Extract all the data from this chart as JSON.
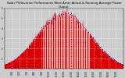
{
  "title": "Solar PV/Inverter Performance West Array Actual & Running Average Power Output",
  "title_fontsize": 2.8,
  "bg_color": "#cccccc",
  "plot_bg_color": "#cccccc",
  "bar_color": "#dd0000",
  "avg_color": "#0000dd",
  "grid_color": "#ffffff",
  "xlabel_fontsize": 2.0,
  "ylabel_fontsize": 2.0,
  "y_min": 0,
  "y_max": 6,
  "x_min": 240,
  "x_max": 1200,
  "y_ticks": [
    1,
    2,
    3,
    4,
    5,
    6
  ],
  "y_labels": [
    "1",
    "2",
    "3",
    "4",
    "5",
    "6"
  ],
  "x_ticks": [
    300,
    360,
    420,
    480,
    540,
    600,
    660,
    720,
    780,
    840,
    900,
    960,
    1020,
    1080,
    1140
  ],
  "x_labels": [
    "5:00",
    "6:00",
    "7:00",
    "8:00",
    "9:00",
    "10:00",
    "11:00",
    "12:00",
    "13:00",
    "14:00",
    "15:00",
    "16:00",
    "17:00",
    "18:00",
    "19:00"
  ]
}
